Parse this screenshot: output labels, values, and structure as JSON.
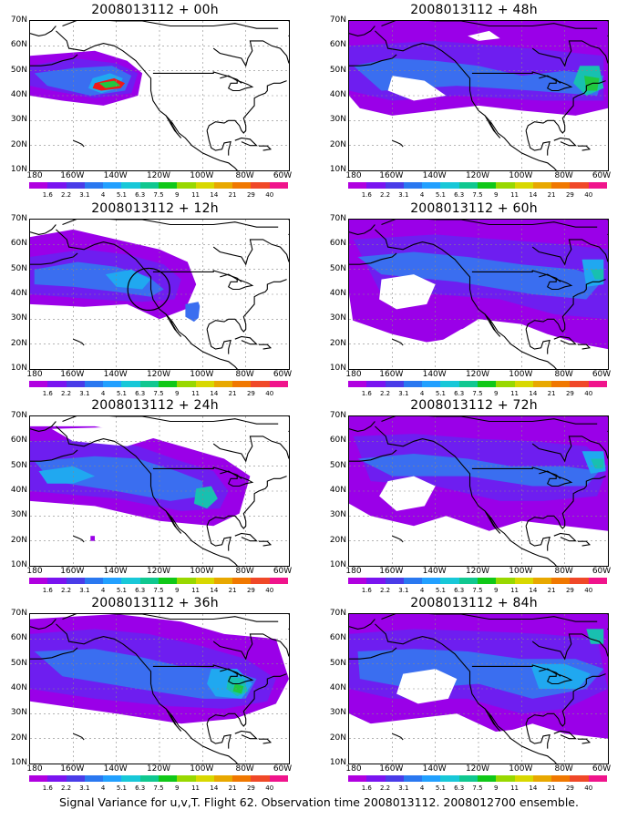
{
  "caption": "Signal Variance for u,v,T. Flight 62. Observation time 2008013112. 2008012700 ensemble.",
  "panels": [
    {
      "title": "2008013112 + 00h",
      "variant": "p00"
    },
    {
      "title": "2008013112 + 48h",
      "variant": "p48"
    },
    {
      "title": "2008013112 + 12h",
      "variant": "p12"
    },
    {
      "title": "2008013112 + 60h",
      "variant": "p60"
    },
    {
      "title": "2008013112 + 24h",
      "variant": "p24"
    },
    {
      "title": "2008013112 + 72h",
      "variant": "p72"
    },
    {
      "title": "2008013112 + 36h",
      "variant": "p36"
    },
    {
      "title": "2008013112 + 84h",
      "variant": "p84"
    }
  ],
  "y_axis": [
    "70N",
    "60N",
    "50N",
    "40N",
    "30N",
    "20N",
    "10N"
  ],
  "x_axis": [
    "180",
    "160W",
    "140W",
    "120W",
    "100W",
    "80W",
    "60W"
  ],
  "colorbar": {
    "labels": [
      "1.6",
      "2.2",
      "3.1",
      "4",
      "5.1",
      "6.3",
      "7.5",
      "9",
      "11",
      "14",
      "21",
      "29",
      "40"
    ],
    "colors": [
      "#b000e0",
      "#7a14f0",
      "#4a3ce8",
      "#2a78f0",
      "#22a0ff",
      "#18c8d8",
      "#10c890",
      "#10c818",
      "#98d800",
      "#d8d800",
      "#e8a800",
      "#f07800",
      "#f04828",
      "#f0148c"
    ]
  },
  "palette": {
    "violet": "#9a00e8",
    "indigo": "#6e1ef0",
    "blue": "#3a6ef0",
    "cyan": "#20a8f0",
    "teal": "#18c0b0",
    "green": "#20c840",
    "red": "#f01818"
  }
}
